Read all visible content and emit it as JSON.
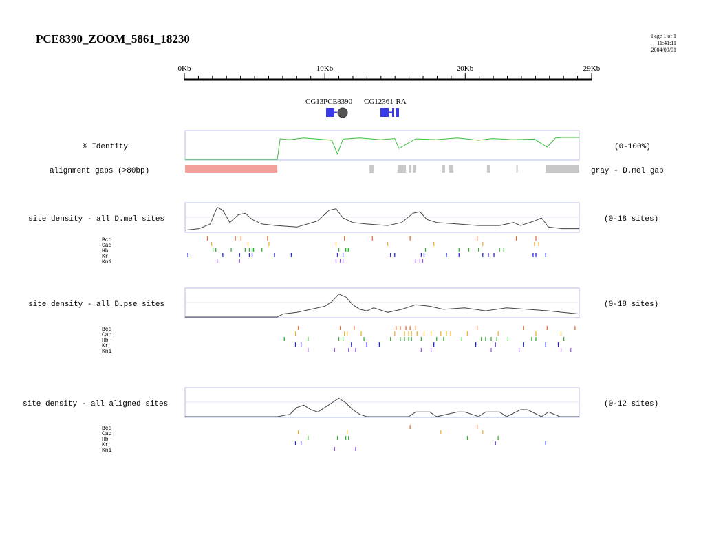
{
  "title": "PCE8390_ZOOM_5861_18230",
  "page_info": {
    "page": "Page 1 of 1",
    "time": "11:41:11",
    "date": "2004/09/01"
  },
  "ruler": {
    "min_kb": 0,
    "max_kb": 29,
    "ticks": [
      "0Kb",
      "10Kb",
      "20Kb",
      "29Kb"
    ]
  },
  "genes": [
    {
      "label": "CG13"
    },
    {
      "label": "PCE8390"
    },
    {
      "label": "CG12361-RA"
    }
  ],
  "tracks": {
    "identity": {
      "label": "% Identity",
      "range_label": "(0-100%)"
    },
    "gaps": {
      "label": "alignment gaps (>80bp)",
      "legend": "gray - D.mel gap"
    },
    "density_mel": {
      "label": "site density - all D.mel sites",
      "range_label": "(0-18 sites)"
    },
    "density_pse": {
      "label": "site density - all D.pse sites",
      "range_label": "(0-18 sites)"
    },
    "density_aligned": {
      "label": "site density - all aligned sites",
      "range_label": "(0-12 sites)"
    }
  },
  "site_factors": [
    "Bcd",
    "Cad",
    "Hb",
    "Kr",
    "Kni"
  ],
  "colors": {
    "frame": "#b8bde6",
    "identity_line": "#3cbf3c",
    "density_line": "#444444",
    "gap_salmon": "#f4a09a",
    "gap_gray": "#c8c8c8",
    "gene_blue": "#3b3be8",
    "bcd": "#e8703a",
    "cad": "#f0b030",
    "hb": "#30b030",
    "kr": "#2a2ad8",
    "kni": "#9a55e8"
  },
  "chart_data": [
    {
      "type": "line",
      "name": "% Identity",
      "ylim": [
        0,
        100
      ],
      "note": "low (~0-10) from 0 to ~6.7Kb, then fluctuating ~60-85 with dips to ~20-40",
      "x_kb": [
        0,
        6.6,
        6.8,
        7.5,
        8.5,
        9.5,
        10.5,
        10.9,
        11.3,
        12.5,
        14,
        15,
        15.3,
        16.5,
        18,
        19.5,
        21,
        22,
        23.5,
        25,
        25.9,
        26.5,
        27,
        28.2
      ],
      "y": [
        0,
        0,
        75,
        72,
        78,
        74,
        70,
        20,
        74,
        78,
        72,
        76,
        40,
        75,
        72,
        78,
        70,
        76,
        72,
        74,
        45,
        78,
        80,
        80
      ]
    },
    {
      "type": "line",
      "name": "site density - all D.mel sites",
      "ylim": [
        0,
        18
      ],
      "x_kb": [
        0,
        1,
        1.8,
        2.3,
        2.7,
        3.2,
        3.8,
        4.3,
        4.8,
        5.5,
        6.5,
        8,
        9.5,
        10.3,
        10.8,
        11.3,
        12,
        13,
        14.5,
        15.5,
        16.3,
        16.8,
        17.3,
        18,
        19.5,
        21,
        22.5,
        23.5,
        24,
        25,
        25.5,
        26,
        27,
        28.2
      ],
      "y": [
        1,
        2,
        5,
        16,
        14,
        6,
        11,
        12,
        8,
        5,
        4,
        3,
        7,
        14,
        15,
        9,
        6,
        5,
        4,
        6,
        12,
        13,
        8,
        6,
        5,
        4,
        4,
        6,
        4,
        7,
        9,
        3,
        2,
        2
      ]
    },
    {
      "type": "line",
      "name": "site density - all D.pse sites",
      "ylim": [
        0,
        18
      ],
      "x_kb": [
        0,
        6.6,
        7,
        8,
        9,
        10,
        10.5,
        11,
        11.5,
        12,
        12.5,
        13,
        13.5,
        14.5,
        15.5,
        16.5,
        17.5,
        18.5,
        20,
        21.5,
        23,
        24.5,
        26,
        27,
        28.2
      ],
      "y": [
        0,
        0,
        2,
        3,
        5,
        7,
        10,
        15,
        13,
        8,
        5,
        4,
        6,
        3,
        5,
        8,
        7,
        5,
        6,
        4,
        6,
        5,
        4,
        3,
        2
      ]
    },
    {
      "type": "line",
      "name": "site density - all aligned sites",
      "ylim": [
        0,
        12
      ],
      "x_kb": [
        0,
        6.6,
        7.5,
        8,
        8.5,
        9,
        9.5,
        10,
        10.5,
        11,
        11.5,
        12,
        12.5,
        13,
        16,
        16.5,
        17.5,
        18,
        19.5,
        20,
        21,
        21.5,
        22.5,
        23,
        24,
        24.5,
        25.5,
        26,
        26.8,
        28.2
      ],
      "y": [
        0,
        0,
        1,
        4,
        5,
        3,
        2,
        4,
        6,
        8,
        6,
        3,
        1,
        0,
        0,
        2,
        2,
        0,
        2,
        2,
        0,
        2,
        2,
        0,
        3,
        3,
        0,
        2,
        0,
        0
      ]
    }
  ],
  "gap_blocks": {
    "salmon_kb": [
      [
        0,
        6.6
      ]
    ],
    "gray_kb": [
      [
        13.2,
        13.5
      ],
      [
        15.2,
        15.8
      ],
      [
        16.0,
        16.2
      ],
      [
        16.3,
        16.5
      ],
      [
        18.4,
        18.6
      ],
      [
        18.9,
        19.2
      ],
      [
        21.6,
        21.8
      ],
      [
        23.7,
        23.8
      ],
      [
        25.8,
        28.2
      ]
    ]
  },
  "site_marks_kb": {
    "mel": {
      "Bcd": [
        1.6,
        3.6,
        4.0,
        5.9,
        11.4,
        13.4,
        16.1,
        20.9,
        23.7,
        25.1
      ],
      "Cad": [
        1.9,
        4.5,
        6.0,
        10.8,
        14.5,
        17.8,
        21.3,
        25.0,
        25.3
      ],
      "Hb": [
        2.0,
        2.2,
        3.3,
        4.3,
        4.6,
        4.8,
        4.9,
        5.5,
        11.0,
        11.5,
        11.6,
        11.7,
        17.2,
        19.6,
        20.3,
        21.0,
        22.5,
        22.8
      ],
      "Kr": [
        0.2,
        2.7,
        3.9,
        4.6,
        4.8,
        6.4,
        7.6,
        10.9,
        11.3,
        14.7,
        15.0,
        16.9,
        17.1,
        18.7,
        19.6,
        21.3,
        21.7,
        22.1,
        24.9,
        25.1,
        25.8
      ],
      "Kni": [
        2.3,
        3.9,
        10.8,
        11.1,
        11.3,
        16.5,
        16.8,
        17.0
      ]
    },
    "pse": {
      "Bcd": [
        8.1,
        11.1,
        12.1,
        15.1,
        15.4,
        15.8,
        16.1,
        16.5,
        20.9,
        24.2,
        25.9,
        27.9
      ],
      "Cad": [
        7.9,
        11.4,
        11.6,
        12.6,
        15.0,
        15.7,
        16.0,
        16.2,
        16.6,
        17.1,
        17.6,
        18.3,
        18.7,
        19.0,
        20.2,
        22.4,
        25.1,
        26.9
      ],
      "Hb": [
        7.1,
        8.8,
        11.0,
        11.3,
        12.8,
        14.7,
        15.4,
        15.7,
        16.0,
        16.2,
        16.9,
        18.0,
        18.5,
        19.8,
        21.2,
        21.5,
        21.9,
        22.3,
        23.1,
        24.8,
        25.1,
        27.1
      ],
      "Kr": [
        7.9,
        8.3,
        11.9,
        13.0,
        13.9,
        17.8,
        20.8,
        22.2,
        24.2,
        25.8,
        26.7
      ],
      "Kni": [
        8.8,
        10.7,
        11.7,
        12.2,
        16.9,
        17.6,
        21.9,
        23.9,
        26.9,
        27.6
      ]
    },
    "aligned": {
      "Bcd": [
        16.1,
        20.9
      ],
      "Cad": [
        8.1,
        11.6,
        18.3,
        21.3
      ],
      "Hb": [
        8.8,
        10.9,
        11.5,
        11.7,
        20.2,
        22.4
      ],
      "Kr": [
        7.9,
        8.3,
        22.2,
        25.8
      ],
      "Kni": [
        10.7,
        12.2
      ]
    }
  }
}
